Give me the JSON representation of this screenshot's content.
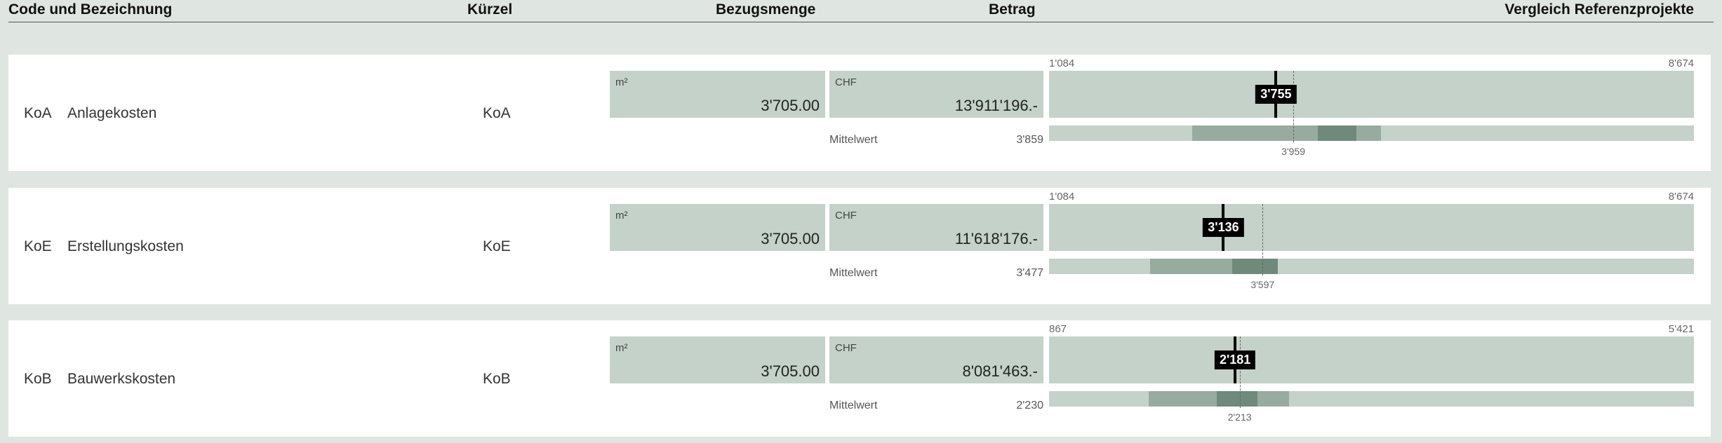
{
  "header": {
    "code": "Code und Bezeichnung",
    "kurzel": "Kürzel",
    "menge": "Bezugsmenge",
    "betrag": "Betrag",
    "vergleich": "Vergleich Referenzprojekte"
  },
  "rows": [
    {
      "code": "KoA",
      "name": "Anlagekosten",
      "kurzel": "KoA",
      "menge_unit": "m²",
      "menge": "3'705.00",
      "betrag_unit": "CHF",
      "betrag": "13'911'196.-",
      "mittelwert_label": "Mittelwert",
      "mittelwert": "3'859",
      "min": "1'084",
      "max": "8'674",
      "marker": "3'755",
      "median": "3'959",
      "marker_value": 3755,
      "median_value": 3959,
      "min_value": 1084,
      "max_value": 8674,
      "range_outer": [
        2770,
        4990
      ],
      "range_inner": [
        4250,
        4700
      ]
    },
    {
      "code": "KoE",
      "name": "Erstellungskosten",
      "kurzel": "KoE",
      "menge_unit": "m²",
      "menge": "3'705.00",
      "betrag_unit": "CHF",
      "betrag": "11'618'176.-",
      "mittelwert_label": "Mittelwert",
      "mittelwert": "3'477",
      "min": "1'084",
      "max": "8'674",
      "marker": "3'136",
      "median": "3'597",
      "marker_value": 3136,
      "median_value": 3597,
      "min_value": 1084,
      "max_value": 8674,
      "range_outer": [
        2270,
        3780
      ],
      "range_inner": [
        3240,
        3780
      ]
    },
    {
      "code": "KoB",
      "name": "Bauwerkskosten",
      "kurzel": "KoB",
      "menge_unit": "m²",
      "menge": "3'705.00",
      "betrag_unit": "CHF",
      "betrag": "8'081'463.-",
      "mittelwert_label": "Mittelwert",
      "mittelwert": "2'230",
      "min": "867",
      "max": "5'421",
      "marker": "2'181",
      "median": "2'213",
      "marker_value": 2181,
      "median_value": 2213,
      "min_value": 867,
      "max_value": 5421,
      "range_outer": [
        1570,
        2560
      ],
      "range_inner": [
        2050,
        2340
      ]
    }
  ]
}
